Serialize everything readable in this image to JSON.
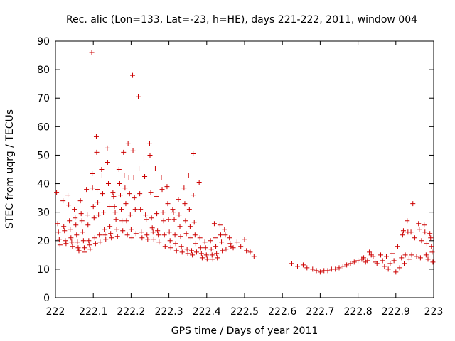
{
  "chart_data": {
    "type": "scatter",
    "title": "Rec. alic (Lon=133, Lat=-23, h=HE), days 221-222, 2011, window 004",
    "xlabel": "GPS time / Days of year 2011",
    "ylabel": "STEC from uqrg / TECUs",
    "xlim": [
      222,
      223
    ],
    "ylim": [
      0,
      90
    ],
    "x_ticks": [
      222,
      222.1,
      222.2,
      222.3,
      222.4,
      222.5,
      222.6,
      222.7,
      222.8,
      222.9,
      223
    ],
    "x_tick_labels": [
      "222",
      "222.1",
      "222.2",
      "222.3",
      "222.4",
      "222.5",
      "222.6",
      "222.7",
      "222.8",
      "222.9",
      "223"
    ],
    "y_ticks": [
      0,
      10,
      20,
      30,
      40,
      50,
      60,
      70,
      80,
      90
    ],
    "y_tick_labels": [
      "0",
      "10",
      "20",
      "30",
      "40",
      "50",
      "60",
      "70",
      "80",
      "90"
    ],
    "grid": false,
    "legend": "none",
    "marker": "+",
    "marker_color": "#cc0000",
    "points": [
      [
        222.003,
        37.0
      ],
      [
        222.006,
        26.0
      ],
      [
        222.008,
        23.0
      ],
      [
        222.01,
        20.5
      ],
      [
        222.012,
        18.5
      ],
      [
        222.02,
        34.0
      ],
      [
        222.022,
        25.0
      ],
      [
        222.024,
        23.5
      ],
      [
        222.026,
        20.0
      ],
      [
        222.028,
        19.0
      ],
      [
        222.033,
        36.0
      ],
      [
        222.035,
        32.5
      ],
      [
        222.037,
        27.0
      ],
      [
        222.039,
        24.0
      ],
      [
        222.041,
        21.0
      ],
      [
        222.043,
        19.5
      ],
      [
        222.045,
        18.0
      ],
      [
        222.05,
        31.0
      ],
      [
        222.052,
        28.0
      ],
      [
        222.054,
        25.5
      ],
      [
        222.056,
        22.0
      ],
      [
        222.058,
        19.5
      ],
      [
        222.06,
        17.5
      ],
      [
        222.062,
        16.5
      ],
      [
        222.066,
        34.0
      ],
      [
        222.068,
        29.5
      ],
      [
        222.07,
        27.0
      ],
      [
        222.072,
        23.0
      ],
      [
        222.074,
        20.0
      ],
      [
        222.076,
        17.5
      ],
      [
        222.078,
        16.0
      ],
      [
        222.082,
        38.0
      ],
      [
        222.084,
        29.0
      ],
      [
        222.086,
        25.5
      ],
      [
        222.088,
        20.0
      ],
      [
        222.09,
        18.5
      ],
      [
        222.092,
        17.0
      ],
      [
        222.096,
        86.0
      ],
      [
        222.097,
        43.5
      ],
      [
        222.098,
        38.5
      ],
      [
        222.1,
        32.0
      ],
      [
        222.102,
        28.0
      ],
      [
        222.104,
        21.0
      ],
      [
        222.106,
        19.0
      ],
      [
        222.108,
        56.5
      ],
      [
        222.109,
        51.0
      ],
      [
        222.11,
        38.0
      ],
      [
        222.112,
        33.5
      ],
      [
        222.114,
        29.0
      ],
      [
        222.116,
        22.0
      ],
      [
        222.118,
        19.5
      ],
      [
        222.122,
        45.0
      ],
      [
        222.123,
        43.0
      ],
      [
        222.125,
        36.5
      ],
      [
        222.127,
        30.0
      ],
      [
        222.129,
        24.0
      ],
      [
        222.131,
        22.0
      ],
      [
        222.133,
        20.5
      ],
      [
        222.137,
        52.5
      ],
      [
        222.138,
        47.5
      ],
      [
        222.14,
        40.0
      ],
      [
        222.142,
        32.0
      ],
      [
        222.144,
        25.0
      ],
      [
        222.146,
        22.5
      ],
      [
        222.148,
        21.0
      ],
      [
        222.152,
        37.0
      ],
      [
        222.154,
        35.5
      ],
      [
        222.156,
        32.0
      ],
      [
        222.158,
        30.0
      ],
      [
        222.16,
        27.5
      ],
      [
        222.162,
        24.0
      ],
      [
        222.164,
        21.5
      ],
      [
        222.168,
        45.0
      ],
      [
        222.17,
        40.0
      ],
      [
        222.172,
        36.0
      ],
      [
        222.174,
        31.0
      ],
      [
        222.176,
        27.0
      ],
      [
        222.178,
        23.5
      ],
      [
        222.18,
        51.0
      ],
      [
        222.182,
        43.0
      ],
      [
        222.184,
        38.5
      ],
      [
        222.186,
        33.0
      ],
      [
        222.188,
        27.0
      ],
      [
        222.19,
        22.0
      ],
      [
        222.192,
        54.0
      ],
      [
        222.194,
        42.0
      ],
      [
        222.196,
        36.5
      ],
      [
        222.198,
        29.0
      ],
      [
        222.2,
        24.0
      ],
      [
        222.202,
        21.0
      ],
      [
        222.204,
        78.0
      ],
      [
        222.205,
        51.5
      ],
      [
        222.207,
        42.0
      ],
      [
        222.209,
        35.0
      ],
      [
        222.211,
        31.0
      ],
      [
        222.213,
        22.5
      ],
      [
        222.219,
        70.5
      ],
      [
        222.221,
        45.5
      ],
      [
        222.223,
        36.5
      ],
      [
        222.225,
        31.0
      ],
      [
        222.227,
        23.0
      ],
      [
        222.229,
        21.0
      ],
      [
        222.234,
        49.0
      ],
      [
        222.236,
        42.5
      ],
      [
        222.238,
        29.0
      ],
      [
        222.24,
        27.5
      ],
      [
        222.242,
        22.0
      ],
      [
        222.244,
        20.5
      ],
      [
        222.249,
        54.0
      ],
      [
        222.25,
        50.0
      ],
      [
        222.252,
        37.0
      ],
      [
        222.254,
        28.0
      ],
      [
        222.256,
        24.5
      ],
      [
        222.258,
        23.0
      ],
      [
        222.26,
        20.5
      ],
      [
        222.264,
        45.5
      ],
      [
        222.266,
        35.5
      ],
      [
        222.268,
        29.5
      ],
      [
        222.27,
        23.5
      ],
      [
        222.272,
        22.0
      ],
      [
        222.274,
        19.5
      ],
      [
        222.28,
        42.0
      ],
      [
        222.282,
        38.0
      ],
      [
        222.284,
        30.0
      ],
      [
        222.286,
        27.0
      ],
      [
        222.288,
        22.0
      ],
      [
        222.29,
        18.0
      ],
      [
        222.295,
        39.0
      ],
      [
        222.297,
        33.0
      ],
      [
        222.299,
        27.5
      ],
      [
        222.301,
        23.0
      ],
      [
        222.303,
        20.0
      ],
      [
        222.305,
        17.5
      ],
      [
        222.31,
        31.0
      ],
      [
        222.312,
        30.0
      ],
      [
        222.314,
        27.5
      ],
      [
        222.316,
        22.0
      ],
      [
        222.318,
        19.0
      ],
      [
        222.32,
        16.5
      ],
      [
        222.325,
        34.5
      ],
      [
        222.327,
        29.0
      ],
      [
        222.329,
        25.0
      ],
      [
        222.331,
        21.5
      ],
      [
        222.333,
        18.0
      ],
      [
        222.335,
        16.0
      ],
      [
        222.34,
        38.5
      ],
      [
        222.342,
        33.0
      ],
      [
        222.344,
        27.0
      ],
      [
        222.346,
        22.5
      ],
      [
        222.348,
        17.0
      ],
      [
        222.35,
        15.5
      ],
      [
        222.352,
        43.0
      ],
      [
        222.354,
        31.0
      ],
      [
        222.356,
        25.0
      ],
      [
        222.358,
        21.0
      ],
      [
        222.36,
        16.5
      ],
      [
        222.362,
        15.0
      ],
      [
        222.364,
        50.5
      ],
      [
        222.365,
        36.0
      ],
      [
        222.367,
        26.5
      ],
      [
        222.369,
        22.0
      ],
      [
        222.371,
        19.0
      ],
      [
        222.373,
        16.0
      ],
      [
        222.38,
        40.5
      ],
      [
        222.382,
        21.0
      ],
      [
        222.384,
        17.5
      ],
      [
        222.386,
        15.5
      ],
      [
        222.388,
        14.0
      ],
      [
        222.395,
        19.5
      ],
      [
        222.397,
        17.5
      ],
      [
        222.399,
        15.0
      ],
      [
        222.401,
        13.5
      ],
      [
        222.41,
        20.0
      ],
      [
        222.412,
        17.0
      ],
      [
        222.414,
        15.0
      ],
      [
        222.416,
        13.5
      ],
      [
        222.42,
        26.0
      ],
      [
        222.422,
        21.0
      ],
      [
        222.424,
        18.0
      ],
      [
        222.426,
        15.5
      ],
      [
        222.428,
        14.0
      ],
      [
        222.435,
        25.5
      ],
      [
        222.437,
        22.0
      ],
      [
        222.439,
        19.5
      ],
      [
        222.441,
        16.5
      ],
      [
        222.447,
        24.0
      ],
      [
        222.449,
        22.0
      ],
      [
        222.451,
        17.0
      ],
      [
        222.46,
        21.0
      ],
      [
        222.462,
        19.0
      ],
      [
        222.464,
        18.0
      ],
      [
        222.47,
        17.5
      ],
      [
        222.48,
        19.5
      ],
      [
        222.49,
        18.0
      ],
      [
        222.5,
        20.5
      ],
      [
        222.505,
        16.5
      ],
      [
        222.515,
        16.0
      ],
      [
        222.525,
        14.5
      ],
      [
        222.625,
        12.0
      ],
      [
        222.64,
        11.0
      ],
      [
        222.655,
        11.5
      ],
      [
        222.665,
        10.5
      ],
      [
        222.68,
        10.0
      ],
      [
        222.69,
        9.5
      ],
      [
        222.7,
        9.0
      ],
      [
        222.71,
        9.5
      ],
      [
        222.72,
        9.5
      ],
      [
        222.73,
        10.0
      ],
      [
        222.74,
        10.0
      ],
      [
        222.75,
        10.5
      ],
      [
        222.76,
        11.0
      ],
      [
        222.77,
        11.5
      ],
      [
        222.78,
        12.0
      ],
      [
        222.79,
        12.5
      ],
      [
        222.8,
        13.0
      ],
      [
        222.81,
        13.5
      ],
      [
        222.815,
        14.0
      ],
      [
        222.82,
        12.5
      ],
      [
        222.825,
        13.0
      ],
      [
        222.83,
        16.0
      ],
      [
        222.835,
        15.0
      ],
      [
        222.84,
        14.5
      ],
      [
        222.845,
        12.5
      ],
      [
        222.85,
        12.0
      ],
      [
        222.86,
        15.0
      ],
      [
        222.865,
        13.0
      ],
      [
        222.87,
        11.0
      ],
      [
        222.875,
        14.5
      ],
      [
        222.88,
        10.0
      ],
      [
        222.885,
        12.0
      ],
      [
        222.89,
        15.5
      ],
      [
        222.895,
        13.0
      ],
      [
        222.9,
        9.0
      ],
      [
        222.905,
        18.0
      ],
      [
        222.91,
        10.5
      ],
      [
        222.915,
        14.0
      ],
      [
        222.918,
        22.0
      ],
      [
        222.92,
        23.5
      ],
      [
        222.922,
        12.0
      ],
      [
        222.925,
        15.0
      ],
      [
        222.93,
        27.0
      ],
      [
        222.932,
        23.0
      ],
      [
        222.935,
        13.5
      ],
      [
        222.94,
        23.0
      ],
      [
        222.942,
        15.0
      ],
      [
        222.945,
        33.0
      ],
      [
        222.95,
        21.0
      ],
      [
        222.955,
        14.5
      ],
      [
        222.96,
        26.0
      ],
      [
        222.962,
        24.0
      ],
      [
        222.965,
        14.0
      ],
      [
        222.968,
        20.0
      ],
      [
        222.975,
        25.5
      ],
      [
        222.977,
        23.0
      ],
      [
        222.98,
        15.0
      ],
      [
        222.982,
        19.0
      ],
      [
        222.985,
        13.5
      ],
      [
        222.99,
        22.5
      ],
      [
        222.992,
        21.0
      ],
      [
        222.994,
        18.0
      ],
      [
        222.996,
        16.0
      ],
      [
        222.998,
        12.5
      ]
    ]
  }
}
